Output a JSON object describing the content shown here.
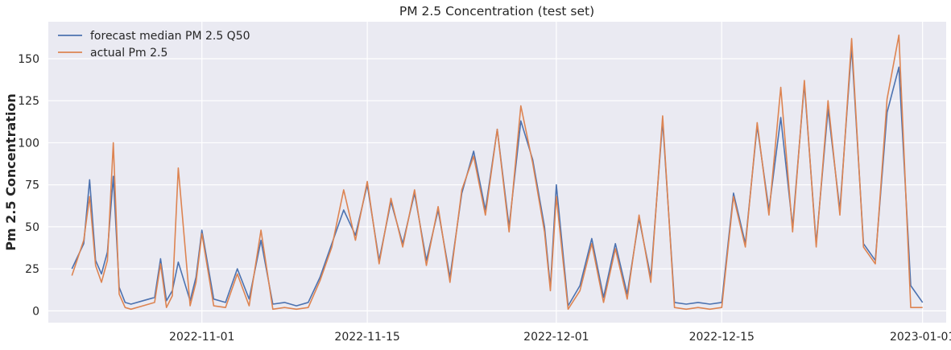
{
  "chart_data": {
    "type": "line",
    "title": "PM 2.5 Concentration (test set)",
    "xlabel": "",
    "ylabel": "Pm 2.5 Concentration",
    "x_ticks": [
      "2022-11-01",
      "2022-11-15",
      "2022-12-01",
      "2022-12-15",
      "2023-01-01"
    ],
    "y_ticks": [
      0,
      25,
      50,
      75,
      100,
      125,
      150
    ],
    "ylim": [
      -7,
      172
    ],
    "xlim": [
      "2022-10-19",
      "2023-01-03"
    ],
    "grid": true,
    "legend_position": "upper-left",
    "background": "#eaeaf2",
    "series": [
      {
        "name": "forecast median PM 2.5 Q50",
        "color": "#4c72b0",
        "points": [
          [
            "2022-10-21",
            25
          ],
          [
            "2022-10-22",
            40
          ],
          [
            "2022-10-22 12:00",
            78
          ],
          [
            "2022-10-23",
            30
          ],
          [
            "2022-10-23 12:00",
            22
          ],
          [
            "2022-10-24",
            35
          ],
          [
            "2022-10-24 12:00",
            80
          ],
          [
            "2022-10-25",
            14
          ],
          [
            "2022-10-25 12:00",
            5
          ],
          [
            "2022-10-26",
            4
          ],
          [
            "2022-10-27",
            6
          ],
          [
            "2022-10-28",
            8
          ],
          [
            "2022-10-28 12:00",
            31
          ],
          [
            "2022-10-29",
            6
          ],
          [
            "2022-10-29 12:00",
            12
          ],
          [
            "2022-10-30",
            29
          ],
          [
            "2022-10-31",
            6
          ],
          [
            "2022-10-31 12:00",
            20
          ],
          [
            "2022-11-01",
            48
          ],
          [
            "2022-11-02",
            7
          ],
          [
            "2022-11-03",
            5
          ],
          [
            "2022-11-04",
            25
          ],
          [
            "2022-11-05",
            7
          ],
          [
            "2022-11-06",
            42
          ],
          [
            "2022-11-07",
            4
          ],
          [
            "2022-11-08",
            5
          ],
          [
            "2022-11-09",
            3
          ],
          [
            "2022-11-10",
            5
          ],
          [
            "2022-11-11",
            20
          ],
          [
            "2022-11-12",
            40
          ],
          [
            "2022-11-13",
            60
          ],
          [
            "2022-11-14",
            45
          ],
          [
            "2022-11-15",
            75
          ],
          [
            "2022-11-16",
            30
          ],
          [
            "2022-11-17",
            65
          ],
          [
            "2022-11-18",
            40
          ],
          [
            "2022-11-19",
            70
          ],
          [
            "2022-11-20",
            30
          ],
          [
            "2022-11-21",
            60
          ],
          [
            "2022-11-22",
            20
          ],
          [
            "2022-11-23",
            70
          ],
          [
            "2022-11-24",
            95
          ],
          [
            "2022-11-25",
            60
          ],
          [
            "2022-11-26",
            108
          ],
          [
            "2022-11-27",
            50
          ],
          [
            "2022-11-28",
            113
          ],
          [
            "2022-11-29",
            90
          ],
          [
            "2022-11-30",
            50
          ],
          [
            "2022-11-30 12:00",
            14
          ],
          [
            "2022-12-01",
            75
          ],
          [
            "2022-12-02",
            3
          ],
          [
            "2022-12-03",
            15
          ],
          [
            "2022-12-04",
            43
          ],
          [
            "2022-12-05",
            8
          ],
          [
            "2022-12-06",
            40
          ],
          [
            "2022-12-07",
            10
          ],
          [
            "2022-12-08",
            55
          ],
          [
            "2022-12-09",
            20
          ],
          [
            "2022-12-10",
            113
          ],
          [
            "2022-12-11",
            5
          ],
          [
            "2022-12-12",
            4
          ],
          [
            "2022-12-13",
            5
          ],
          [
            "2022-12-14",
            4
          ],
          [
            "2022-12-15",
            5
          ],
          [
            "2022-12-16",
            70
          ],
          [
            "2022-12-17",
            40
          ],
          [
            "2022-12-18",
            110
          ],
          [
            "2022-12-19",
            60
          ],
          [
            "2022-12-20",
            115
          ],
          [
            "2022-12-21",
            50
          ],
          [
            "2022-12-22",
            135
          ],
          [
            "2022-12-23",
            40
          ],
          [
            "2022-12-24",
            120
          ],
          [
            "2022-12-25",
            60
          ],
          [
            "2022-12-26",
            157
          ],
          [
            "2022-12-27",
            40
          ],
          [
            "2022-12-28",
            30
          ],
          [
            "2022-12-29",
            118
          ],
          [
            "2022-12-30",
            145
          ],
          [
            "2022-12-31",
            15
          ],
          [
            "2023-01-01",
            5
          ]
        ]
      },
      {
        "name": "actual Pm 2.5",
        "color": "#dd8452",
        "points": [
          [
            "2022-10-21",
            21
          ],
          [
            "2022-10-22",
            42
          ],
          [
            "2022-10-22 12:00",
            68
          ],
          [
            "2022-10-23",
            27
          ],
          [
            "2022-10-23 12:00",
            17
          ],
          [
            "2022-10-24",
            30
          ],
          [
            "2022-10-24 12:00",
            100
          ],
          [
            "2022-10-25",
            10
          ],
          [
            "2022-10-25 12:00",
            2
          ],
          [
            "2022-10-26",
            1
          ],
          [
            "2022-10-27",
            3
          ],
          [
            "2022-10-28",
            5
          ],
          [
            "2022-10-28 12:00",
            28
          ],
          [
            "2022-10-29",
            2
          ],
          [
            "2022-10-29 12:00",
            9
          ],
          [
            "2022-10-30",
            85
          ],
          [
            "2022-10-31",
            3
          ],
          [
            "2022-10-31 12:00",
            17
          ],
          [
            "2022-11-01",
            46
          ],
          [
            "2022-11-02",
            3
          ],
          [
            "2022-11-03",
            2
          ],
          [
            "2022-11-04",
            22
          ],
          [
            "2022-11-05",
            3
          ],
          [
            "2022-11-06",
            48
          ],
          [
            "2022-11-07",
            1
          ],
          [
            "2022-11-08",
            2
          ],
          [
            "2022-11-09",
            1
          ],
          [
            "2022-11-10",
            2
          ],
          [
            "2022-11-11",
            18
          ],
          [
            "2022-11-12",
            38
          ],
          [
            "2022-11-13",
            72
          ],
          [
            "2022-11-14",
            42
          ],
          [
            "2022-11-15",
            77
          ],
          [
            "2022-11-16",
            28
          ],
          [
            "2022-11-17",
            67
          ],
          [
            "2022-11-18",
            38
          ],
          [
            "2022-11-19",
            72
          ],
          [
            "2022-11-20",
            27
          ],
          [
            "2022-11-21",
            62
          ],
          [
            "2022-11-22",
            17
          ],
          [
            "2022-11-23",
            72
          ],
          [
            "2022-11-24",
            92
          ],
          [
            "2022-11-25",
            57
          ],
          [
            "2022-11-26",
            108
          ],
          [
            "2022-11-27",
            47
          ],
          [
            "2022-11-28",
            122
          ],
          [
            "2022-11-29",
            88
          ],
          [
            "2022-11-30",
            47
          ],
          [
            "2022-11-30 12:00",
            12
          ],
          [
            "2022-12-01",
            68
          ],
          [
            "2022-12-02",
            1
          ],
          [
            "2022-12-03",
            12
          ],
          [
            "2022-12-04",
            40
          ],
          [
            "2022-12-05",
            5
          ],
          [
            "2022-12-06",
            37
          ],
          [
            "2022-12-07",
            7
          ],
          [
            "2022-12-08",
            57
          ],
          [
            "2022-12-09",
            17
          ],
          [
            "2022-12-10",
            116
          ],
          [
            "2022-12-11",
            2
          ],
          [
            "2022-12-12",
            1
          ],
          [
            "2022-12-13",
            2
          ],
          [
            "2022-12-14",
            1
          ],
          [
            "2022-12-15",
            2
          ],
          [
            "2022-12-16",
            68
          ],
          [
            "2022-12-17",
            38
          ],
          [
            "2022-12-18",
            112
          ],
          [
            "2022-12-19",
            57
          ],
          [
            "2022-12-20",
            133
          ],
          [
            "2022-12-21",
            47
          ],
          [
            "2022-12-22",
            137
          ],
          [
            "2022-12-23",
            38
          ],
          [
            "2022-12-24",
            125
          ],
          [
            "2022-12-25",
            57
          ],
          [
            "2022-12-26",
            162
          ],
          [
            "2022-12-27",
            38
          ],
          [
            "2022-12-28",
            28
          ],
          [
            "2022-12-29",
            126
          ],
          [
            "2022-12-30",
            164
          ],
          [
            "2022-12-31",
            2
          ],
          [
            "2023-01-01",
            2
          ]
        ]
      }
    ]
  }
}
